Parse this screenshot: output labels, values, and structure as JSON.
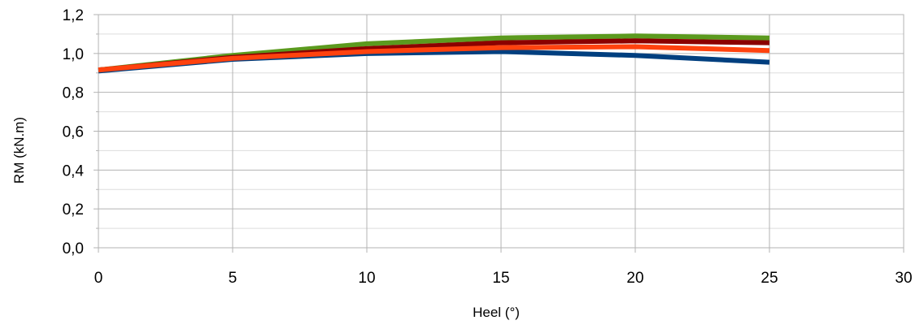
{
  "chart_data": {
    "type": "line",
    "title": "",
    "xlabel": "Heel (°)",
    "ylabel": "RM (kN.m)",
    "xlim": [
      0,
      30
    ],
    "ylim": [
      0,
      1.2
    ],
    "x_ticks": [
      0,
      5,
      10,
      15,
      20,
      25,
      30
    ],
    "x_tick_labels": [
      "0",
      "5",
      "10",
      "15",
      "20",
      "25",
      "30"
    ],
    "y_ticks": [
      0,
      0.2,
      0.4,
      0.6,
      0.8,
      1.0,
      1.2
    ],
    "y_tick_labels": [
      "0,0",
      "0,2",
      "0,4",
      "0,6",
      "0,8",
      "1,0",
      "1,2"
    ],
    "grid": true,
    "legend": "none",
    "x": [
      0,
      5,
      10,
      15,
      20,
      25
    ],
    "series": [
      {
        "color": "#5b9a1e",
        "values": [
          0.915,
          0.99,
          1.05,
          1.08,
          1.09,
          1.08
        ]
      },
      {
        "color": "#8b0000",
        "values": [
          0.915,
          0.98,
          1.025,
          1.055,
          1.065,
          1.055
        ]
      },
      {
        "color": "#003f7f",
        "values": [
          0.91,
          0.97,
          1.0,
          1.01,
          0.99,
          0.955
        ]
      },
      {
        "color": "#ff420e",
        "values": [
          0.915,
          0.975,
          1.01,
          1.03,
          1.035,
          1.015
        ]
      }
    ]
  }
}
